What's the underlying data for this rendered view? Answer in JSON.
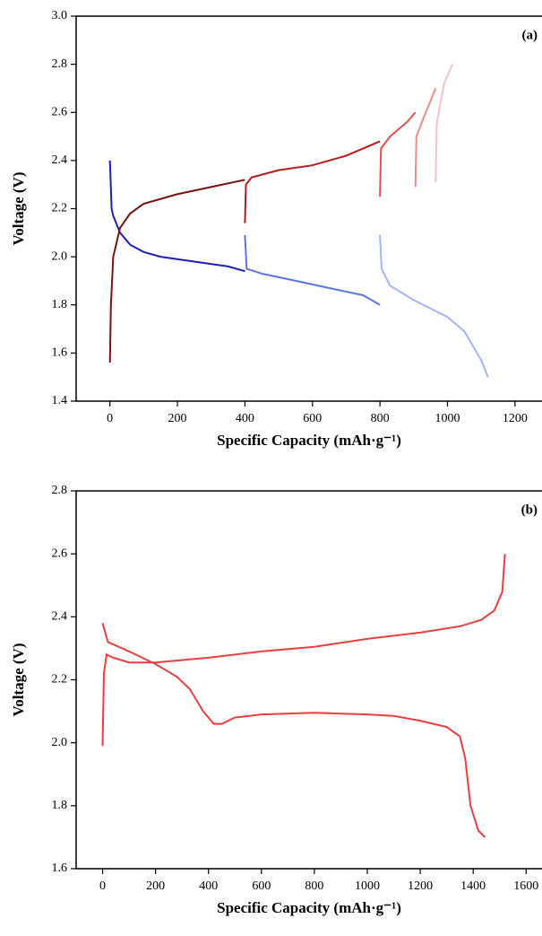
{
  "chart_data": [
    {
      "type": "line",
      "annotation": "(a)",
      "xlabel": "Specific Capacity (mAh·g⁻¹)",
      "ylabel": "Voltage (V)",
      "xlim": [
        -100,
        1280
      ],
      "ylim": [
        1.4,
        3.0
      ],
      "xticks": [
        0,
        200,
        400,
        600,
        800,
        1000,
        1200
      ],
      "yticks": [
        1.4,
        1.6,
        1.8,
        {
          "value": 2,
          "label": "2.0"
        },
        2.2,
        2.4,
        2.6,
        2.8,
        {
          "value": 3,
          "label": "3.0"
        }
      ],
      "series": [
        {
          "color": "#1c20b4",
          "x": [
            0,
            5,
            10,
            30,
            60,
            100,
            150,
            250,
            350,
            400
          ],
          "values": [
            2.4,
            2.2,
            2.17,
            2.1,
            2.05,
            2.02,
            2.0,
            1.98,
            1.96,
            1.94
          ]
        },
        {
          "color": "#5a78e0",
          "x": [
            400,
            405,
            450,
            550,
            650,
            750,
            800
          ],
          "values": [
            2.09,
            1.95,
            1.93,
            1.9,
            1.87,
            1.84,
            1.8
          ]
        },
        {
          "color": "#a4b4f4",
          "x": [
            800,
            805,
            830,
            900,
            1000,
            1050,
            1100,
            1120
          ],
          "values": [
            2.09,
            1.95,
            1.88,
            1.82,
            1.75,
            1.69,
            1.57,
            1.5
          ]
        },
        {
          "color": "#7a1010",
          "x": [
            0,
            3,
            10,
            30,
            60,
            100,
            200,
            300,
            400
          ],
          "values": [
            1.56,
            1.8,
            2.0,
            2.12,
            2.18,
            2.22,
            2.26,
            2.29,
            2.32
          ]
        },
        {
          "color": "#b41c1c",
          "x": [
            400,
            403,
            420,
            500,
            600,
            700,
            800
          ],
          "values": [
            2.14,
            2.3,
            2.33,
            2.36,
            2.38,
            2.42,
            2.48
          ]
        },
        {
          "color": "#e05050",
          "x": [
            800,
            803,
            830,
            880,
            905
          ],
          "values": [
            2.25,
            2.45,
            2.5,
            2.56,
            2.6
          ]
        },
        {
          "color": "#f08a8a",
          "x": [
            905,
            908,
            930,
            965
          ],
          "values": [
            2.29,
            2.5,
            2.58,
            2.7
          ]
        },
        {
          "color": "#f8c0c0",
          "x": [
            965,
            968,
            990,
            1015
          ],
          "values": [
            2.31,
            2.55,
            2.72,
            2.8
          ]
        }
      ]
    },
    {
      "type": "line",
      "annotation": "(b)",
      "xlabel": "Specific Capacity (mAh·g⁻¹)",
      "ylabel": "Voltage (V)",
      "xlim": [
        -100,
        1660
      ],
      "ylim": [
        1.6,
        2.8
      ],
      "xticks": [
        0,
        200,
        400,
        600,
        800,
        1000,
        1200,
        1400,
        1600
      ],
      "yticks": [
        1.6,
        1.8,
        {
          "value": 2,
          "label": "2.0"
        },
        2.2,
        2.4,
        2.6,
        2.8
      ],
      "series": [
        {
          "color": "#e84040",
          "x": [
            0,
            5,
            15,
            40,
            100,
            200,
            400,
            600,
            800,
            1000,
            1200,
            1350,
            1430,
            1480,
            1510,
            1520
          ],
          "values": [
            1.99,
            2.22,
            2.28,
            2.27,
            2.255,
            2.255,
            2.27,
            2.29,
            2.305,
            2.33,
            2.35,
            2.37,
            2.39,
            2.42,
            2.48,
            2.6
          ]
        },
        {
          "color": "#e84040",
          "x": [
            0,
            20,
            100,
            200,
            280,
            330,
            380,
            420,
            450,
            500,
            600,
            800,
            1000,
            1100,
            1200,
            1300,
            1350,
            1370,
            1390,
            1420,
            1445
          ],
          "values": [
            2.38,
            2.32,
            2.29,
            2.25,
            2.21,
            2.17,
            2.1,
            2.06,
            2.06,
            2.08,
            2.09,
            2.095,
            2.09,
            2.085,
            2.07,
            2.05,
            2.02,
            1.95,
            1.8,
            1.72,
            1.7
          ]
        }
      ]
    }
  ]
}
